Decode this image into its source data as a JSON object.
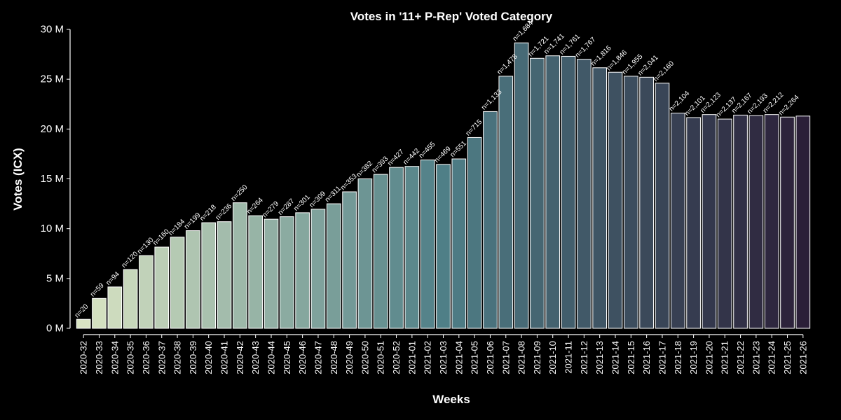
{
  "chart_data": {
    "type": "bar",
    "title": "Votes in '11+ P-Rep' Voted Category",
    "xlabel": "Weeks",
    "ylabel": "Votes (ICX)",
    "ylim": [
      0,
      30000000
    ],
    "yticks": [
      0,
      5000000,
      10000000,
      15000000,
      20000000,
      25000000,
      30000000
    ],
    "ytick_labels": [
      "0 M",
      "5 M",
      "10 M",
      "15 M",
      "20 M",
      "25 M",
      "30 M"
    ],
    "grid": false,
    "categories": [
      "2020-32",
      "2020-33",
      "2020-34",
      "2020-35",
      "2020-36",
      "2020-37",
      "2020-38",
      "2020-39",
      "2020-40",
      "2020-41",
      "2020-42",
      "2020-43",
      "2020-44",
      "2020-45",
      "2020-46",
      "2020-47",
      "2020-48",
      "2020-49",
      "2020-50",
      "2020-51",
      "2020-52",
      "2021-01",
      "2021-02",
      "2021-03",
      "2021-04",
      "2021-05",
      "2021-06",
      "2021-07",
      "2021-08",
      "2021-09",
      "2021-10",
      "2021-11",
      "2021-12",
      "2021-13",
      "2021-14",
      "2021-15",
      "2021-16",
      "2021-17",
      "2021-18",
      "2021-19",
      "2021-20",
      "2021-21",
      "2021-22",
      "2021-23",
      "2021-24",
      "2021-25",
      "2021-26"
    ],
    "values": [
      900000,
      3000000,
      4150000,
      5900000,
      7300000,
      8150000,
      9150000,
      9800000,
      10600000,
      10700000,
      12600000,
      11300000,
      10950000,
      11200000,
      11600000,
      11950000,
      12500000,
      13700000,
      15000000,
      15450000,
      16150000,
      16250000,
      16900000,
      16450000,
      17000000,
      19150000,
      21750000,
      25300000,
      28650000,
      27100000,
      27350000,
      27300000,
      27000000,
      26150000,
      25700000,
      25300000,
      25200000,
      24600000,
      21600000,
      21150000,
      21450000,
      21000000,
      21400000,
      21350000,
      21450000,
      21200000,
      21300000
    ],
    "annotations": [
      "n=20",
      "n=59",
      "n=94",
      "n=120",
      "n=130",
      "n=160",
      "n=184",
      "n=199",
      "n=218",
      "n=236",
      "n=250",
      "n=264",
      "n=279",
      "n=287",
      "n=301",
      "n=309",
      "n=311",
      "n=353",
      "n=382",
      "n=393",
      "n=427",
      "n=442",
      "n=455",
      "n=469",
      "n=551",
      "n=715",
      "n=1,133",
      "n=1,478",
      "n=1,684",
      "n=1,721",
      "n=1,741",
      "n=1,761",
      "n=1,767",
      "n=1,816",
      "n=1,846",
      "n=1,955",
      "n=2,041",
      "n=2,160",
      "n=2,104",
      "n=2,101",
      "n=2,123",
      "n=2,137",
      "n=2,167",
      "n=2,193",
      "n=2,212",
      "n=2,264",
      ""
    ],
    "palette": {
      "start": "#d9e4c3",
      "mid": "#4f7f87",
      "end": "#2b1f38",
      "bar_edge": "#ffffff",
      "background": "#000000",
      "text": "#ffffff"
    }
  }
}
